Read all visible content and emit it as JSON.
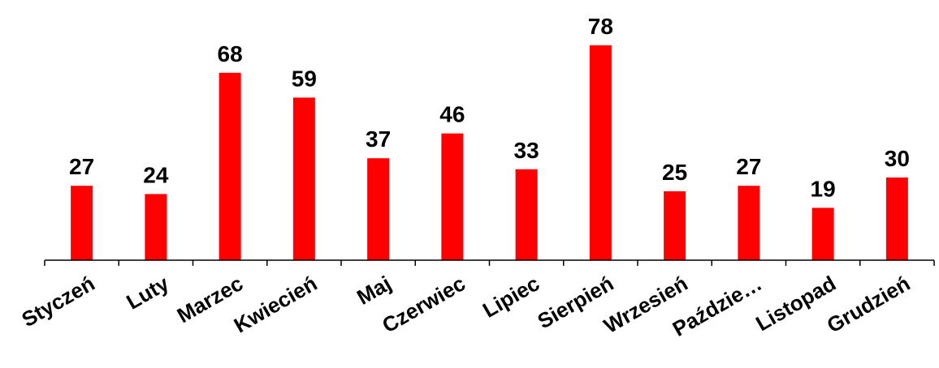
{
  "chart_data": {
    "type": "bar",
    "categories": [
      "Styczeń",
      "Luty",
      "Marzec",
      "Kwiecień",
      "Maj",
      "Czerwiec",
      "Lipiec",
      "Sierpień",
      "Wrzesień",
      "Paździe…",
      "Listopad",
      "Grudzień"
    ],
    "values": [
      27,
      24,
      68,
      59,
      37,
      46,
      33,
      78,
      25,
      27,
      19,
      30
    ],
    "data_labels": [
      "27",
      "24",
      "68",
      "59",
      "37",
      "46",
      "33",
      "78",
      "25",
      "27",
      "19",
      "30"
    ],
    "title": "",
    "xlabel": "",
    "ylabel": "",
    "ylim": [
      0,
      80
    ],
    "grid": false,
    "legend": "none",
    "bar_color": "#ff0000",
    "axis_color": "#000000"
  }
}
